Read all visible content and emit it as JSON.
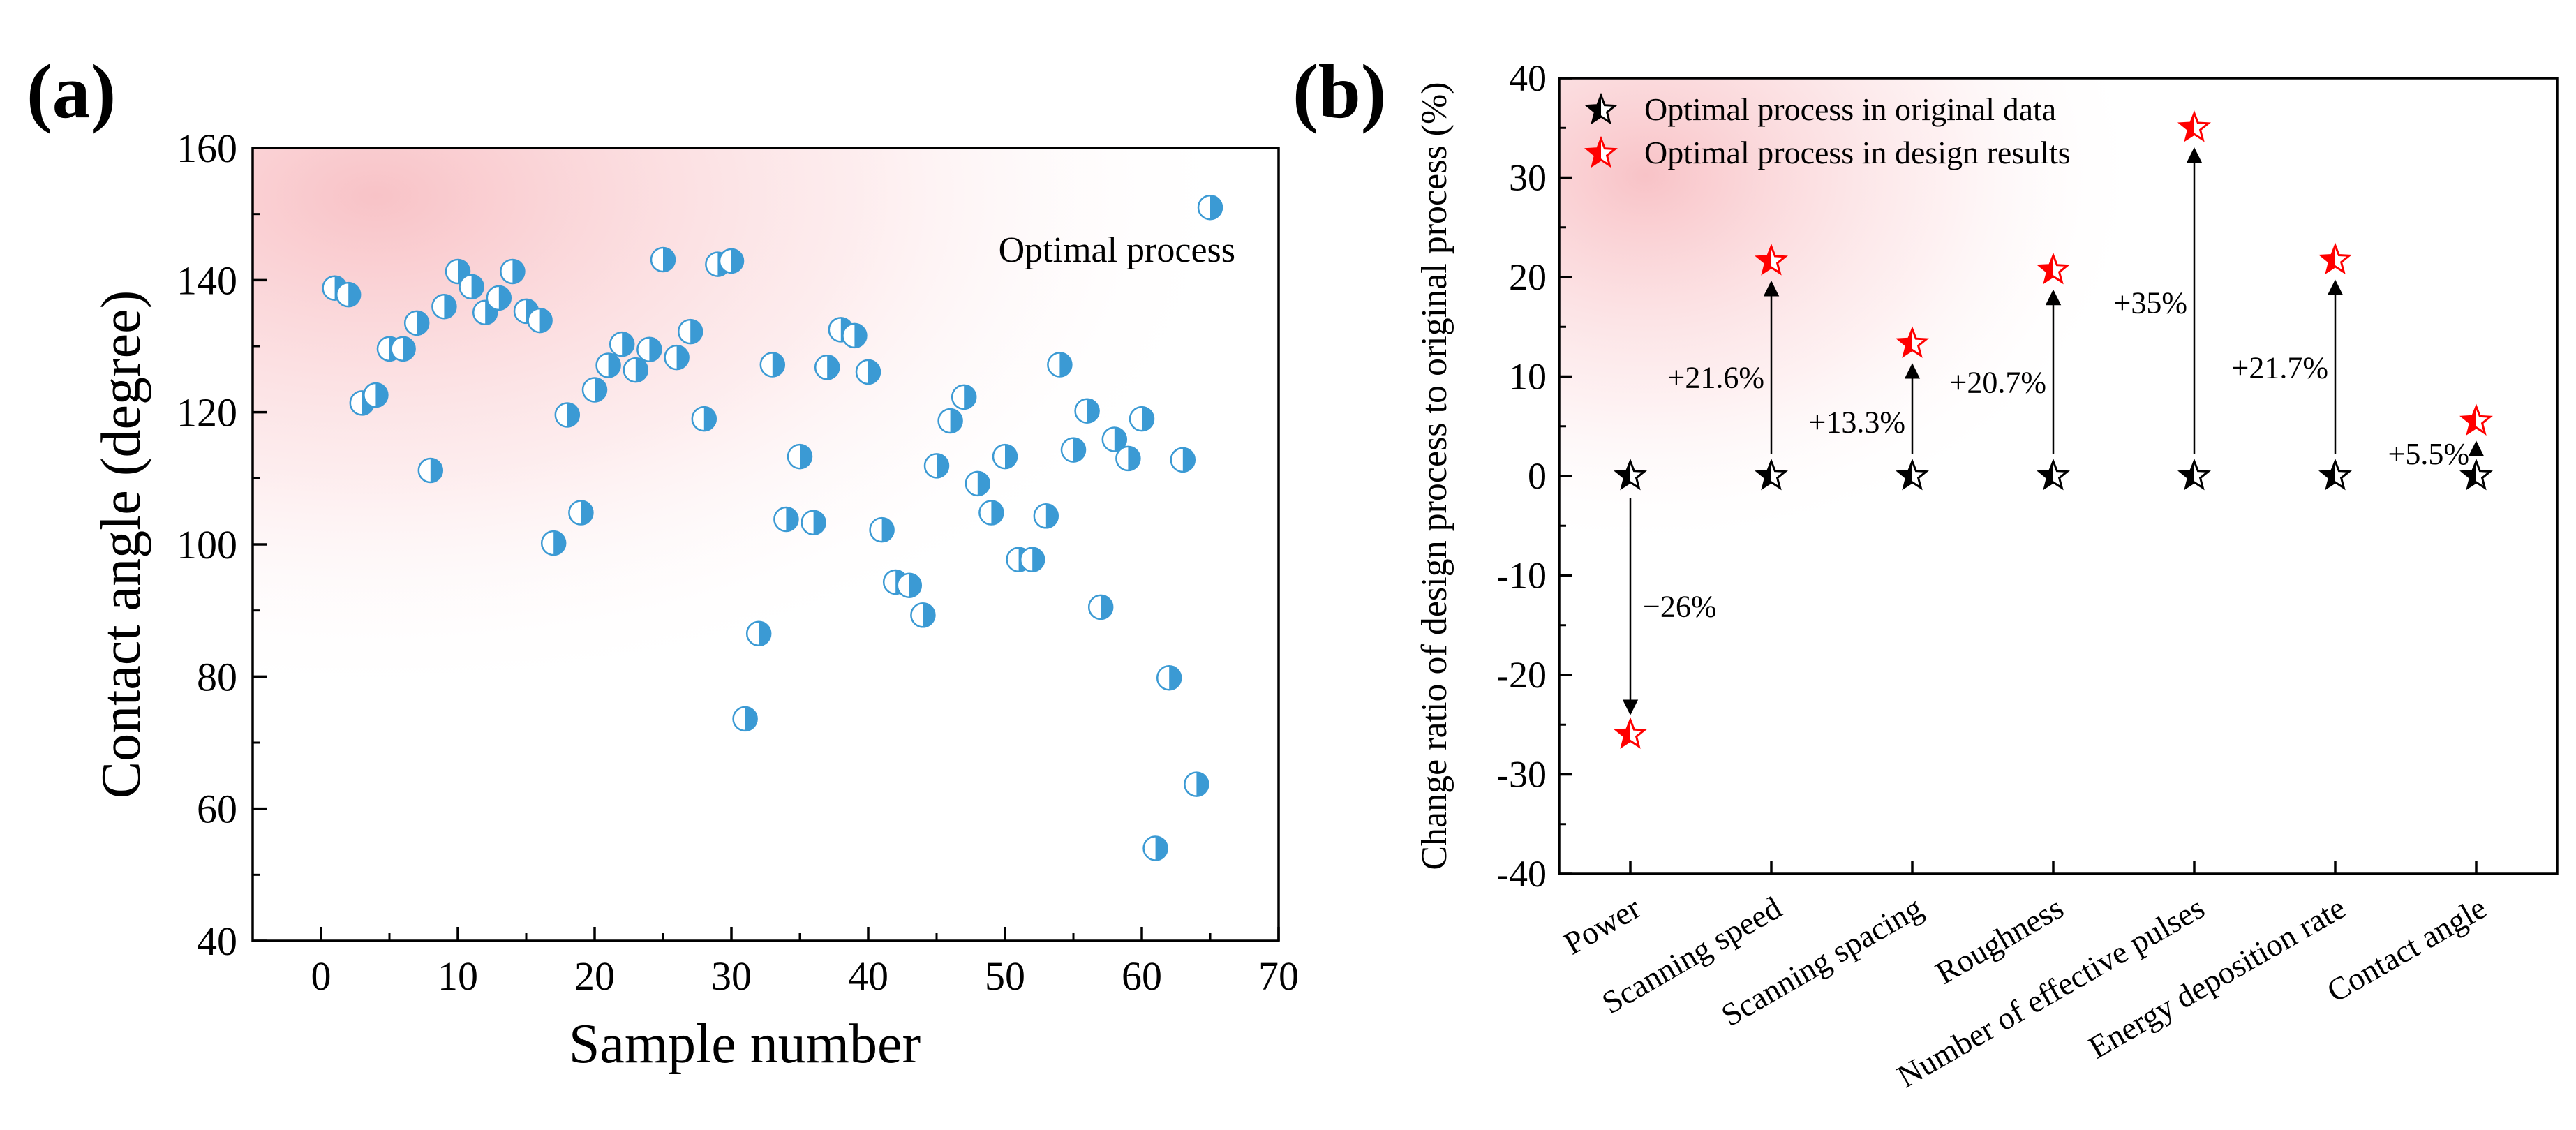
{
  "panels": {
    "a": {
      "label": "(a)"
    },
    "b": {
      "label": "(b)"
    }
  },
  "chart_data": [
    {
      "type": "scatter",
      "title": "",
      "xlabel": "Sample number",
      "ylabel": "Contact angle (degree)",
      "xlim": [
        -5,
        70
      ],
      "ylim": [
        40,
        160
      ],
      "xticks": [
        0,
        10,
        20,
        30,
        40,
        50,
        60,
        70
      ],
      "yticks": [
        40,
        60,
        80,
        100,
        120,
        140,
        160
      ],
      "annotation": "Optimal process",
      "marker_color": "#3b9ad4",
      "x": [
        1,
        2,
        3,
        4,
        5,
        6,
        7,
        8,
        9,
        10,
        11,
        12,
        13,
        14,
        15,
        16,
        17,
        18,
        19,
        20,
        21,
        22,
        23,
        24,
        25,
        26,
        27,
        28,
        29,
        30,
        31,
        32,
        33,
        34,
        35,
        36,
        37,
        38,
        39,
        40,
        41,
        42,
        43,
        44,
        45,
        46,
        47,
        48,
        49,
        50,
        51,
        52,
        53,
        54,
        55,
        56,
        57,
        58,
        59,
        60,
        61,
        62,
        63,
        64,
        65
      ],
      "y": [
        138.8,
        137.8,
        121.4,
        122.6,
        129.6,
        129.6,
        133.5,
        111.2,
        136.0,
        141.3,
        139.0,
        135.1,
        137.3,
        141.3,
        135.3,
        133.9,
        100.2,
        119.6,
        104.8,
        123.4,
        127.1,
        130.3,
        126.4,
        129.5,
        143.1,
        128.3,
        132.2,
        119.0,
        142.4,
        142.9,
        73.6,
        86.5,
        127.2,
        103.8,
        113.3,
        103.3,
        126.8,
        132.5,
        131.6,
        126.1,
        102.2,
        94.3,
        93.8,
        89.3,
        111.9,
        118.7,
        122.3,
        109.2,
        104.8,
        113.3,
        97.7,
        97.7,
        104.3,
        127.2,
        114.3,
        120.2,
        90.5,
        115.9,
        113.0,
        119.0,
        54.0,
        79.8,
        112.8,
        63.7,
        151.0
      ]
    },
    {
      "type": "scatter",
      "title": "",
      "xlabel": "",
      "ylabel": "Change ratio of design process to original process (%)",
      "ylim": [
        -40,
        40
      ],
      "yticks": [
        -40,
        -30,
        -20,
        -10,
        0,
        10,
        20,
        30,
        40
      ],
      "categories": [
        "Power",
        "Scanning speed",
        "Scanning spacing",
        "Roughness",
        "Number of effective pulses",
        "Energy deposition rate",
        "Contact angle"
      ],
      "series": [
        {
          "name": "Optimal process in original data",
          "color": "#000000",
          "values": [
            0,
            0,
            0,
            0,
            0,
            0,
            0
          ]
        },
        {
          "name": "Optimal process in design results",
          "color": "#ff0000",
          "values": [
            -26,
            21.6,
            13.3,
            20.7,
            35,
            21.7,
            5.5
          ]
        }
      ],
      "change_labels": [
        "−26%",
        "+21.6%",
        "+13.3%",
        "+20.7%",
        "+35%",
        "+21.7%",
        "+5.5%"
      ]
    }
  ]
}
